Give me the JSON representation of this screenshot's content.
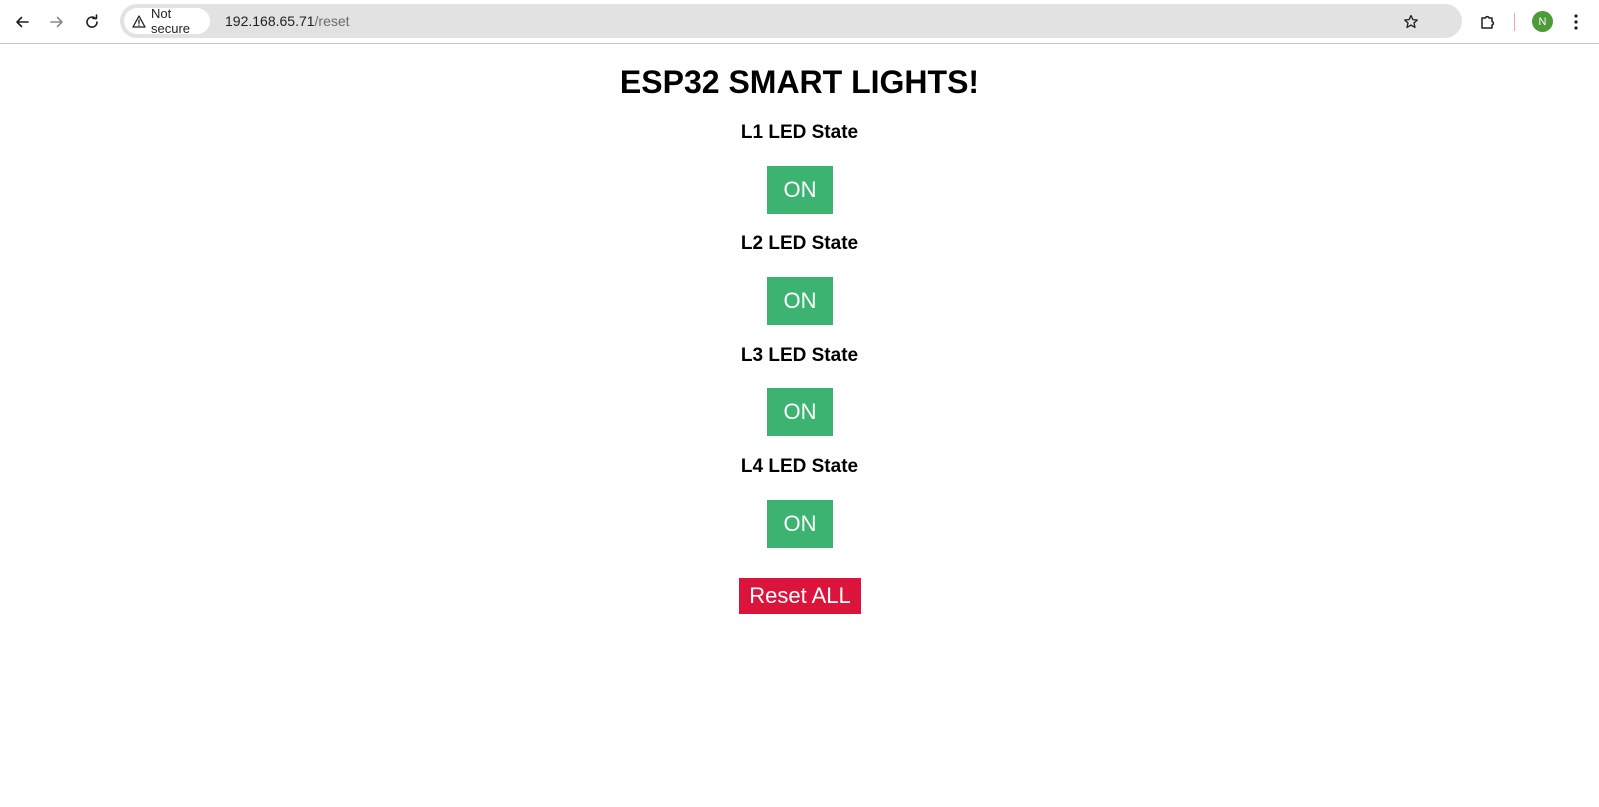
{
  "browser": {
    "security_label": "Not secure",
    "url_host": "192.168.65.71",
    "url_path": "/reset",
    "profile_initial": "N",
    "profile_color": "#4f9a38",
    "icons": [
      "back-icon",
      "forward-icon",
      "reload-icon",
      "warning-icon",
      "star-icon",
      "extensions-icon",
      "menu-icon"
    ]
  },
  "page": {
    "title": "ESP32 SMART LIGHTS!",
    "leds": [
      {
        "label": "L1 LED State",
        "state": "ON"
      },
      {
        "label": "L2 LED State",
        "state": "ON"
      },
      {
        "label": "L3 LED State",
        "state": "ON"
      },
      {
        "label": "L4 LED State",
        "state": "ON"
      }
    ],
    "reset_label": "Reset ALL",
    "colors": {
      "on_button": "#3cb371",
      "reset_button": "#dc143c"
    }
  }
}
